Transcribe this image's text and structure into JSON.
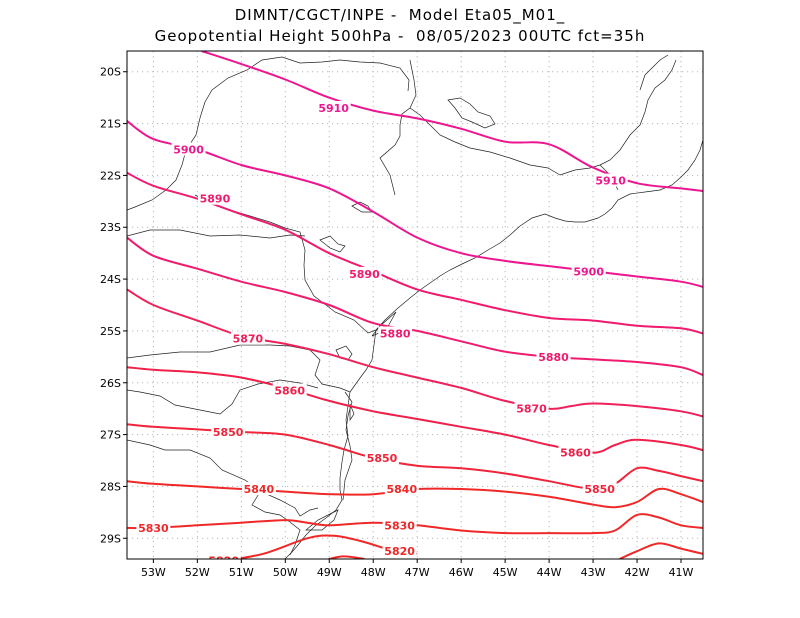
{
  "title": {
    "line1": "DIMNT/CGCT/INPE -  Model Eta05_M01_",
    "line2": "Geopotential Height 500hPa -  08/05/2023 00UTC fct=35h"
  },
  "map": {
    "lon_range": [
      -53.6,
      -40.5
    ],
    "lat_range": [
      -29.4,
      -19.6
    ],
    "lon_ticks": [
      {
        "value": -53,
        "label": "53W"
      },
      {
        "value": -52,
        "label": "52W"
      },
      {
        "value": -51,
        "label": "51W"
      },
      {
        "value": -50,
        "label": "50W"
      },
      {
        "value": -49,
        "label": "49W"
      },
      {
        "value": -48,
        "label": "48W"
      },
      {
        "value": -47,
        "label": "47W"
      },
      {
        "value": -46,
        "label": "46W"
      },
      {
        "value": -45,
        "label": "45W"
      },
      {
        "value": -44,
        "label": "44W"
      },
      {
        "value": -43,
        "label": "43W"
      },
      {
        "value": -42,
        "label": "42W"
      },
      {
        "value": -41,
        "label": "41W"
      }
    ],
    "lat_ticks": [
      {
        "value": -20,
        "label": "20S"
      },
      {
        "value": -21,
        "label": "21S"
      },
      {
        "value": -22,
        "label": "22S"
      },
      {
        "value": -23,
        "label": "23S"
      },
      {
        "value": -24,
        "label": "24S"
      },
      {
        "value": -25,
        "label": "25S"
      },
      {
        "value": -26,
        "label": "26S"
      },
      {
        "value": -27,
        "label": "27S"
      },
      {
        "value": -28,
        "label": "28S"
      },
      {
        "value": -29,
        "label": "29S"
      }
    ],
    "gridlines": true
  },
  "contours": [
    {
      "level": "5910",
      "color": "#ee1690",
      "points": [
        [
          -51.9,
          -19.6
        ],
        [
          -51,
          -19.85
        ],
        [
          -50,
          -20.15
        ],
        [
          -49,
          -20.5
        ],
        [
          -48,
          -20.75
        ],
        [
          -47,
          -20.9
        ],
        [
          -46,
          -21.1
        ],
        [
          -45,
          -21.35
        ],
        [
          -44,
          -21.4
        ],
        [
          -43,
          -21.85
        ],
        [
          -42,
          -22.15
        ],
        [
          -41,
          -22.25
        ],
        [
          -40.5,
          -22.3
        ]
      ],
      "labels": [
        {
          "lon": -48.9,
          "lat": -20.7
        },
        {
          "lon": -42.6,
          "lat": -22.1
        }
      ]
    },
    {
      "level": "5900",
      "color": "#ee1690",
      "points": [
        [
          -53.6,
          -20.95
        ],
        [
          -53,
          -21.3
        ],
        [
          -52,
          -21.5
        ],
        [
          -51,
          -21.8
        ],
        [
          -50,
          -22.0
        ],
        [
          -49,
          -22.25
        ],
        [
          -48,
          -22.7
        ],
        [
          -47,
          -23.2
        ],
        [
          -46,
          -23.5
        ],
        [
          -45,
          -23.65
        ],
        [
          -44,
          -23.75
        ],
        [
          -43,
          -23.85
        ],
        [
          -42,
          -23.95
        ],
        [
          -41,
          -24.05
        ],
        [
          -40.5,
          -24.15
        ]
      ],
      "labels": [
        {
          "lon": -52.2,
          "lat": -21.5
        },
        {
          "lon": -43.1,
          "lat": -23.85
        }
      ]
    },
    {
      "level": "5890",
      "color": "#f01a6e",
      "points": [
        [
          -53.6,
          -21.95
        ],
        [
          -53,
          -22.2
        ],
        [
          -52,
          -22.45
        ],
        [
          -51,
          -22.75
        ],
        [
          -50,
          -23.05
        ],
        [
          -49,
          -23.5
        ],
        [
          -48,
          -23.85
        ],
        [
          -47,
          -24.2
        ],
        [
          -46,
          -24.4
        ],
        [
          -45,
          -24.6
        ],
        [
          -44,
          -24.75
        ],
        [
          -43,
          -24.8
        ],
        [
          -42,
          -24.9
        ],
        [
          -41,
          -24.95
        ],
        [
          -40.5,
          -25.05
        ]
      ],
      "labels": [
        {
          "lon": -51.6,
          "lat": -22.45
        },
        {
          "lon": -48.2,
          "lat": -23.9
        }
      ]
    },
    {
      "level": "5880",
      "color": "#f01a6e",
      "points": [
        [
          -53.6,
          -23.2
        ],
        [
          -53,
          -23.55
        ],
        [
          -52,
          -23.8
        ],
        [
          -51,
          -24.05
        ],
        [
          -50,
          -24.25
        ],
        [
          -49,
          -24.5
        ],
        [
          -48,
          -24.85
        ],
        [
          -47,
          -25.0
        ],
        [
          -46,
          -25.2
        ],
        [
          -45,
          -25.4
        ],
        [
          -44,
          -25.5
        ],
        [
          -43,
          -25.55
        ],
        [
          -42,
          -25.6
        ],
        [
          -41,
          -25.7
        ],
        [
          -40.5,
          -25.85
        ]
      ],
      "labels": [
        {
          "lon": -47.5,
          "lat": -25.05
        },
        {
          "lon": -43.9,
          "lat": -25.5
        }
      ]
    },
    {
      "level": "5870",
      "color": "#f0205a",
      "points": [
        [
          -53.6,
          -24.2
        ],
        [
          -53,
          -24.5
        ],
        [
          -52,
          -24.8
        ],
        [
          -51,
          -25.1
        ],
        [
          -50,
          -25.25
        ],
        [
          -49,
          -25.45
        ],
        [
          -48,
          -25.7
        ],
        [
          -47,
          -25.9
        ],
        [
          -46,
          -26.1
        ],
        [
          -45,
          -26.35
        ],
        [
          -44,
          -26.5
        ],
        [
          -43.5,
          -26.45
        ],
        [
          -43,
          -26.4
        ],
        [
          -42,
          -26.45
        ],
        [
          -41,
          -26.55
        ],
        [
          -40.5,
          -26.65
        ]
      ],
      "labels": [
        {
          "lon": -50.85,
          "lat": -25.15
        },
        {
          "lon": -44.4,
          "lat": -26.5
        }
      ]
    },
    {
      "level": "5860",
      "color": "#f0204a",
      "points": [
        [
          -53.6,
          -25.7
        ],
        [
          -53,
          -25.75
        ],
        [
          -52,
          -25.8
        ],
        [
          -51,
          -25.9
        ],
        [
          -50,
          -26.1
        ],
        [
          -49,
          -26.35
        ],
        [
          -48,
          -26.55
        ],
        [
          -47,
          -26.7
        ],
        [
          -46,
          -26.85
        ],
        [
          -45,
          -27.0
        ],
        [
          -44,
          -27.2
        ],
        [
          -43,
          -27.35
        ],
        [
          -42.5,
          -27.2
        ],
        [
          -42,
          -27.1
        ],
        [
          -41,
          -27.2
        ],
        [
          -40.5,
          -27.3
        ]
      ],
      "labels": [
        {
          "lon": -49.9,
          "lat": -26.15
        },
        {
          "lon": -43.4,
          "lat": -27.35
        }
      ]
    },
    {
      "level": "5850",
      "color": "#f0243a",
      "points": [
        [
          -53.6,
          -26.8
        ],
        [
          -53,
          -26.85
        ],
        [
          -52,
          -26.9
        ],
        [
          -51,
          -26.95
        ],
        [
          -50,
          -27.0
        ],
        [
          -49,
          -27.2
        ],
        [
          -48,
          -27.45
        ],
        [
          -47,
          -27.6
        ],
        [
          -46,
          -27.65
        ],
        [
          -45,
          -27.75
        ],
        [
          -44,
          -27.9
        ],
        [
          -43,
          -28.05
        ],
        [
          -42.5,
          -27.95
        ],
        [
          -42,
          -27.65
        ],
        [
          -41.5,
          -27.7
        ],
        [
          -41,
          -27.8
        ],
        [
          -40.5,
          -27.9
        ]
      ],
      "labels": [
        {
          "lon": -51.3,
          "lat": -26.95
        },
        {
          "lon": -47.8,
          "lat": -27.45
        },
        {
          "lon": -42.85,
          "lat": -28.05
        }
      ]
    },
    {
      "level": "5840",
      "color": "#f02828",
      "points": [
        [
          -53.6,
          -27.9
        ],
        [
          -53,
          -27.95
        ],
        [
          -52,
          -28.0
        ],
        [
          -51,
          -28.05
        ],
        [
          -50,
          -28.1
        ],
        [
          -49,
          -28.15
        ],
        [
          -48,
          -28.15
        ],
        [
          -47,
          -28.05
        ],
        [
          -46,
          -28.05
        ],
        [
          -45,
          -28.1
        ],
        [
          -44,
          -28.2
        ],
        [
          -43,
          -28.35
        ],
        [
          -42.5,
          -28.4
        ],
        [
          -42,
          -28.3
        ],
        [
          -41.5,
          -28.05
        ],
        [
          -41,
          -28.15
        ],
        [
          -40.5,
          -28.3
        ]
      ],
      "labels": [
        {
          "lon": -50.6,
          "lat": -28.05
        },
        {
          "lon": -47.35,
          "lat": -28.05
        }
      ]
    },
    {
      "level": "5830",
      "color": "#f02828",
      "points": [
        [
          -53.6,
          -28.8
        ],
        [
          -53,
          -28.8
        ],
        [
          -52,
          -28.75
        ],
        [
          -51,
          -28.7
        ],
        [
          -50,
          -28.65
        ],
        [
          -49.5,
          -28.7
        ],
        [
          -49,
          -28.75
        ],
        [
          -48,
          -28.7
        ],
        [
          -47,
          -28.75
        ],
        [
          -46,
          -28.85
        ],
        [
          -45,
          -28.9
        ],
        [
          -44,
          -28.9
        ],
        [
          -43,
          -28.9
        ],
        [
          -42.5,
          -28.85
        ],
        [
          -42,
          -28.55
        ],
        [
          -41.5,
          -28.6
        ],
        [
          -41,
          -28.75
        ],
        [
          -40.5,
          -28.8
        ]
      ],
      "labels": [
        {
          "lon": -53.0,
          "lat": -28.8
        },
        {
          "lon": -47.4,
          "lat": -28.75
        }
      ]
    },
    {
      "level": "5820",
      "color": "#f02828",
      "points": [
        [
          -51.5,
          -29.45
        ],
        [
          -50.5,
          -29.3
        ],
        [
          -49.5,
          -29.0
        ],
        [
          -48.9,
          -28.95
        ],
        [
          -48.3,
          -29.05
        ],
        [
          -47.5,
          -29.25
        ],
        [
          -47,
          -29.3
        ]
      ],
      "labels": [
        {
          "lon": -51.4,
          "lat": -29.43
        },
        {
          "lon": -47.4,
          "lat": -29.25
        }
      ]
    },
    {
      "level": "",
      "color": "#f02828",
      "points": [
        [
          -42.4,
          -29.4
        ],
        [
          -42,
          -29.25
        ],
        [
          -41.5,
          -29.1
        ],
        [
          -41,
          -29.2
        ],
        [
          -40.5,
          -29.3
        ]
      ],
      "labels": []
    },
    {
      "level": "",
      "color": "#f02828",
      "points": [
        [
          -49.2,
          -29.45
        ],
        [
          -48.7,
          -29.35
        ],
        [
          -48.2,
          -29.4
        ]
      ],
      "labels": []
    }
  ]
}
